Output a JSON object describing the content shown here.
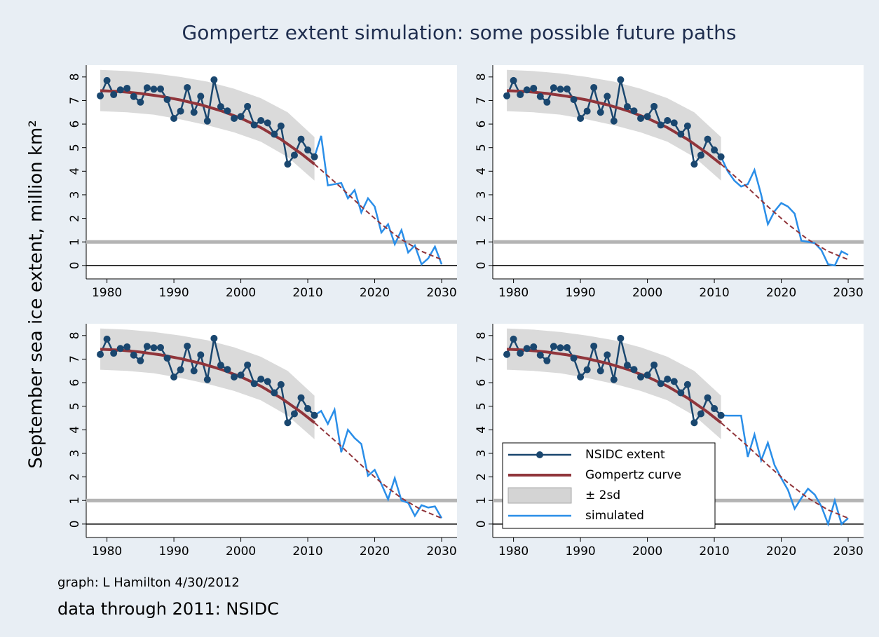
{
  "chart_data": {
    "type": "line",
    "title": "Gompertz extent simulation: some possible future paths",
    "ylabel": "September sea ice extent, million km²",
    "xlim": [
      1976.9,
      2032.3
    ],
    "ylim": [
      -0.57,
      8.5
    ],
    "xticks": [
      1980,
      1990,
      2000,
      2010,
      2020,
      2030
    ],
    "yticks": [
      0,
      1,
      2,
      3,
      4,
      5,
      6,
      7,
      8
    ],
    "hlines": [
      {
        "value": 1,
        "color": "#b4b4b4"
      },
      {
        "value": 0,
        "color": "#000000"
      }
    ],
    "legend": "lower left",
    "series": [
      {
        "name": "NSIDC extent",
        "color": "#1a476f",
        "x": [
          1979,
          1980,
          1981,
          1982,
          1983,
          1984,
          1985,
          1986,
          1987,
          1988,
          1989,
          1990,
          1991,
          1992,
          1993,
          1994,
          1995,
          1996,
          1997,
          1998,
          1999,
          2000,
          2001,
          2002,
          2003,
          2004,
          2005,
          2006,
          2007,
          2008,
          2009,
          2010,
          2011
        ],
        "values": [
          7.2,
          7.85,
          7.25,
          7.45,
          7.52,
          7.17,
          6.93,
          7.54,
          7.48,
          7.49,
          7.04,
          6.24,
          6.55,
          7.55,
          6.5,
          7.18,
          6.13,
          7.88,
          6.74,
          6.56,
          6.24,
          6.32,
          6.75,
          5.96,
          6.15,
          6.05,
          5.57,
          5.92,
          4.3,
          4.68,
          5.36,
          4.9,
          4.61
        ]
      },
      {
        "name": "Gompertz curve",
        "color": "#90353b",
        "x": [
          1979,
          1982,
          1985,
          1988,
          1991,
          1994,
          1997,
          2000,
          2003,
          2006,
          2009,
          2011,
          2012,
          2015,
          2018,
          2021,
          2024,
          2027,
          2030
        ],
        "values": [
          7.42,
          7.38,
          7.3,
          7.18,
          7.02,
          6.82,
          6.57,
          6.25,
          5.85,
          5.35,
          4.75,
          4.3,
          4.05,
          3.3,
          2.5,
          1.75,
          1.1,
          0.6,
          0.25
        ]
      },
      {
        "name": "± 2sd",
        "color": "#d4d4d4",
        "x": [
          1979,
          1983,
          1987,
          1991,
          1995,
          1999,
          2003,
          2007,
          2011
        ],
        "upper": [
          8.3,
          8.25,
          8.15,
          8.0,
          7.8,
          7.5,
          7.1,
          6.5,
          5.45
        ],
        "lower": [
          6.55,
          6.5,
          6.4,
          6.2,
          5.95,
          5.65,
          5.25,
          4.6,
          3.6
        ]
      },
      {
        "name": "simulated",
        "color": "#2a8ee8",
        "x": [
          2011,
          2012,
          2013,
          2014,
          2015,
          2016,
          2017,
          2018,
          2019,
          2020,
          2021,
          2022,
          2023,
          2024,
          2025,
          2026,
          2027,
          2028,
          2029,
          2030
        ],
        "panels": [
          [
            4.61,
            5.5,
            3.4,
            3.45,
            3.5,
            2.85,
            3.2,
            2.25,
            2.85,
            2.5,
            1.4,
            1.75,
            0.9,
            1.5,
            0.55,
            0.85,
            0.05,
            0.3,
            0.8,
            0.05
          ],
          [
            4.61,
            4.0,
            3.6,
            3.35,
            3.45,
            4.05,
            3.0,
            1.75,
            2.3,
            2.65,
            2.5,
            2.2,
            1.05,
            1.0,
            0.95,
            0.65,
            0.05,
            0.0,
            0.6,
            0.45
          ],
          [
            4.61,
            4.8,
            4.25,
            4.85,
            3.05,
            4.0,
            3.65,
            3.4,
            2.05,
            2.3,
            1.7,
            1.05,
            1.95,
            1.0,
            0.9,
            0.35,
            0.8,
            0.7,
            0.75,
            0.25
          ],
          [
            4.61,
            4.6,
            4.6,
            4.6,
            2.85,
            3.8,
            2.7,
            3.45,
            2.5,
            1.95,
            1.45,
            0.65,
            1.1,
            1.5,
            1.25,
            0.75,
            0.0,
            1.0,
            0.0,
            0.25
          ]
        ]
      }
    ],
    "notes": [
      "graph:  L Hamilton 4/30/2012",
      "data through 2011:  NSIDC"
    ]
  }
}
